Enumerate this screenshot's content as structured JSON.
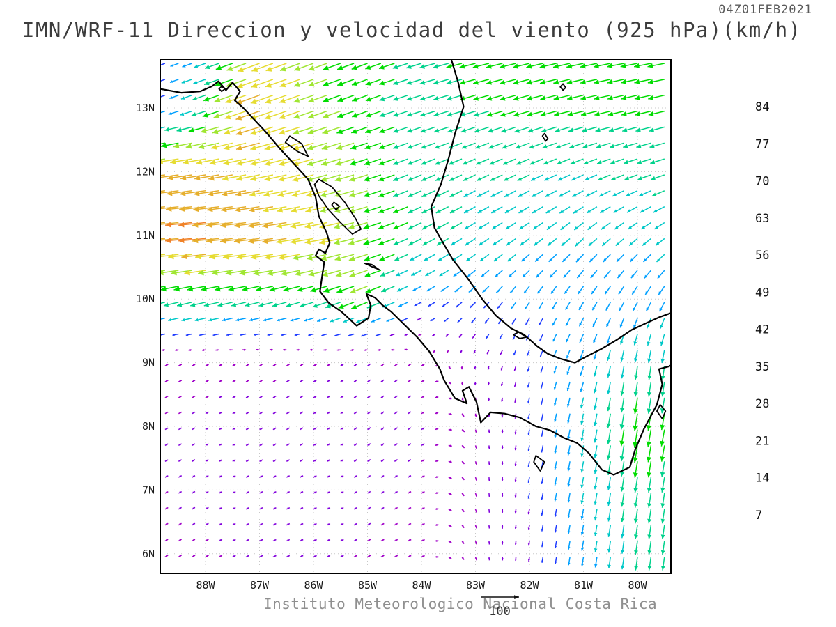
{
  "header": {
    "timestamp": "04Z01FEB2021",
    "title": "IMN/WRF-11 Direccion y velocidad del viento (925 hPa)(km/h)"
  },
  "footer": {
    "credit": "Instituto Meteorologico Nacional Costa Rica"
  },
  "chart_data": {
    "type": "vector_field",
    "model": "IMN/WRF-11",
    "variable": "Direccion y velocidad del viento",
    "level": "925 hPa",
    "units": "km/h",
    "valid_time": "04Z01FEB2021",
    "title": "IMN/WRF-11 Direccion y velocidad del viento (925 hPa)(km/h)",
    "x_axis": {
      "ticks": [
        {
          "label": "88W",
          "lon_w": 88
        },
        {
          "label": "87W",
          "lon_w": 87
        },
        {
          "label": "86W",
          "lon_w": 86
        },
        {
          "label": "85W",
          "lon_w": 85
        },
        {
          "label": "84W",
          "lon_w": 84
        },
        {
          "label": "83W",
          "lon_w": 83
        },
        {
          "label": "82W",
          "lon_w": 82
        },
        {
          "label": "81W",
          "lon_w": 81
        },
        {
          "label": "80W",
          "lon_w": 80
        }
      ],
      "lon_w_range": [
        88.84,
        79.38
      ]
    },
    "y_axis": {
      "ticks": [
        {
          "label": "13N",
          "lat": 13
        },
        {
          "label": "12N",
          "lat": 12
        },
        {
          "label": "11N",
          "lat": 11
        },
        {
          "label": "10N",
          "lat": 10
        },
        {
          "label": "9N",
          "lat": 9
        },
        {
          "label": "8N",
          "lat": 8
        },
        {
          "label": "7N",
          "lat": 7
        },
        {
          "label": "6N",
          "lat": 6
        }
      ],
      "lat_range": [
        5.69,
        13.77
      ]
    },
    "grid": {
      "step": 0.25,
      "lon_w_start": 88.75,
      "lon_w_end": 79.5,
      "lat_start": 13.7,
      "lat_end": 5.75
    },
    "colorbar": {
      "levels": [
        7,
        14,
        21,
        28,
        35,
        42,
        49,
        56,
        63,
        70,
        77,
        84
      ],
      "colors": [
        "#a000c8",
        "#8200dc",
        "#1e3cff",
        "#00a0ff",
        "#00c8c8",
        "#00d28c",
        "#00dc00",
        "#a0e632",
        "#e6dc32",
        "#e6af2d",
        "#f08228",
        "#fa3c3c",
        "#f00082"
      ],
      "orientation": "vertical-right"
    },
    "reference_vector": {
      "value": 100,
      "label": "100"
    },
    "wind_grid": {
      "comment": "u eastward km/h, v northward km/h; rows = lat descending, cols = lon_w descending",
      "lon_w": [
        89,
        88,
        87,
        86,
        85,
        84,
        83,
        82,
        81,
        80,
        79
      ],
      "lat": [
        14,
        13,
        12,
        11,
        10,
        9,
        8,
        7,
        6,
        5
      ],
      "u": [
        [
          -12,
          -28,
          -55,
          -50,
          -42,
          -40,
          -42,
          -44,
          -45,
          -45,
          -45
        ],
        [
          -14,
          -35,
          -62,
          -52,
          -40,
          -38,
          -40,
          -42,
          -42,
          -42,
          -42
        ],
        [
          -62,
          -65,
          -60,
          -55,
          -48,
          -36,
          -32,
          -32,
          -32,
          -34,
          -38
        ],
        [
          -70,
          -72,
          -68,
          -62,
          -50,
          -35,
          -28,
          -25,
          -22,
          -22,
          -25
        ],
        [
          -40,
          -42,
          -40,
          -38,
          -45,
          -20,
          -15,
          -12,
          -12,
          -12,
          -15
        ],
        [
          4,
          5,
          5,
          6,
          6,
          5,
          -2,
          -5,
          -8,
          -5,
          -5
        ],
        [
          6,
          7,
          8,
          8,
          8,
          6,
          2,
          -3,
          -5,
          -8,
          -8
        ],
        [
          6,
          7,
          8,
          8,
          7,
          6,
          2,
          -3,
          -5,
          -6,
          -6
        ],
        [
          5,
          6,
          7,
          7,
          6,
          5,
          2,
          -2,
          -4,
          -5,
          -5
        ],
        [
          5,
          6,
          7,
          7,
          6,
          5,
          2,
          -2,
          -4,
          -5,
          -5
        ]
      ],
      "v": [
        [
          -5,
          -10,
          -20,
          -18,
          -15,
          -12,
          -10,
          -10,
          -10,
          -8,
          -8
        ],
        [
          -5,
          -12,
          -22,
          -18,
          -15,
          -12,
          -12,
          -12,
          -10,
          -10,
          -10
        ],
        [
          -8,
          -10,
          -12,
          -15,
          -15,
          -15,
          -15,
          -15,
          -14,
          -12,
          -12
        ],
        [
          -6,
          -6,
          -8,
          -10,
          -14,
          -18,
          -18,
          -18,
          -20,
          -18,
          -18
        ],
        [
          -10,
          -10,
          -10,
          -12,
          -18,
          -10,
          -15,
          -18,
          -20,
          -22,
          -25
        ],
        [
          2,
          2,
          3,
          3,
          4,
          3,
          -8,
          -15,
          -25,
          -35,
          -38
        ],
        [
          3,
          4,
          4,
          5,
          5,
          4,
          -5,
          -15,
          -30,
          -48,
          -40
        ],
        [
          3,
          4,
          4,
          4,
          4,
          3,
          -6,
          -14,
          -28,
          -38,
          -38
        ],
        [
          3,
          3,
          3,
          3,
          3,
          2,
          -6,
          -12,
          -25,
          -35,
          -35
        ],
        [
          3,
          3,
          3,
          3,
          3,
          2,
          -6,
          -12,
          -25,
          -35,
          -35
        ]
      ]
    },
    "map": {
      "coastlines": [
        {
          "name": "pacific-coast",
          "closed": false,
          "points": [
            [
              88.84,
              13.3
            ],
            [
              88.45,
              13.24
            ],
            [
              88.1,
              13.26
            ],
            [
              87.88,
              13.34
            ],
            [
              87.76,
              13.42
            ],
            [
              87.62,
              13.28
            ],
            [
              87.5,
              13.4
            ],
            [
              87.36,
              13.26
            ],
            [
              87.46,
              13.12
            ],
            [
              87.3,
              13.0
            ],
            [
              87.1,
              12.82
            ],
            [
              86.88,
              12.62
            ],
            [
              86.62,
              12.36
            ],
            [
              86.36,
              12.12
            ],
            [
              86.1,
              11.88
            ],
            [
              85.96,
              11.6
            ],
            [
              85.9,
              11.3
            ],
            [
              85.76,
              11.05
            ],
            [
              85.7,
              10.88
            ],
            [
              85.78,
              10.72
            ],
            [
              85.9,
              10.78
            ],
            [
              85.96,
              10.68
            ],
            [
              85.8,
              10.58
            ],
            [
              85.84,
              10.36
            ],
            [
              85.88,
              10.12
            ],
            [
              85.72,
              9.94
            ],
            [
              85.48,
              9.8
            ],
            [
              85.2,
              9.58
            ],
            [
              84.98,
              9.7
            ],
            [
              84.94,
              9.9
            ],
            [
              85.02,
              10.08
            ],
            [
              84.86,
              10.02
            ],
            [
              84.72,
              9.9
            ],
            [
              84.56,
              9.8
            ],
            [
              84.32,
              9.6
            ],
            [
              84.08,
              9.4
            ],
            [
              83.86,
              9.18
            ],
            [
              83.66,
              8.9
            ],
            [
              83.58,
              8.72
            ],
            [
              83.38,
              8.44
            ],
            [
              83.16,
              8.36
            ],
            [
              83.24,
              8.56
            ],
            [
              83.12,
              8.62
            ],
            [
              82.98,
              8.38
            ],
            [
              82.9,
              8.06
            ],
            [
              82.72,
              8.22
            ],
            [
              82.46,
              8.2
            ],
            [
              82.18,
              8.14
            ],
            [
              81.88,
              8.0
            ],
            [
              81.62,
              7.94
            ],
            [
              81.36,
              7.82
            ],
            [
              81.12,
              7.74
            ],
            [
              80.9,
              7.58
            ],
            [
              80.66,
              7.32
            ],
            [
              80.44,
              7.24
            ],
            [
              80.14,
              7.36
            ],
            [
              80.04,
              7.64
            ],
            [
              79.88,
              7.96
            ],
            [
              79.64,
              8.34
            ],
            [
              79.54,
              8.66
            ],
            [
              79.6,
              8.9
            ],
            [
              79.42,
              8.94
            ],
            [
              79.38,
              8.96
            ]
          ]
        },
        {
          "name": "caribbean-coast",
          "closed": false,
          "points": [
            [
              83.45,
              13.77
            ],
            [
              83.32,
              13.4
            ],
            [
              83.22,
              13.02
            ],
            [
              83.38,
              12.6
            ],
            [
              83.5,
              12.2
            ],
            [
              83.64,
              11.8
            ],
            [
              83.82,
              11.45
            ],
            [
              83.76,
              11.12
            ],
            [
              83.64,
              10.94
            ],
            [
              83.42,
              10.62
            ],
            [
              83.14,
              10.32
            ],
            [
              82.86,
              9.98
            ],
            [
              82.62,
              9.74
            ],
            [
              82.34,
              9.54
            ],
            [
              82.1,
              9.44
            ],
            [
              81.86,
              9.26
            ],
            [
              81.66,
              9.14
            ],
            [
              81.42,
              9.06
            ],
            [
              81.16,
              9.0
            ],
            [
              80.94,
              9.1
            ],
            [
              80.66,
              9.22
            ],
            [
              80.38,
              9.36
            ],
            [
              80.1,
              9.52
            ],
            [
              79.84,
              9.62
            ],
            [
              79.58,
              9.72
            ],
            [
              79.38,
              9.78
            ]
          ]
        },
        {
          "name": "lake-nicaragua",
          "closed": true,
          "points": [
            [
              85.9,
              11.88
            ],
            [
              85.66,
              11.76
            ],
            [
              85.42,
              11.52
            ],
            [
              85.22,
              11.26
            ],
            [
              85.12,
              11.1
            ],
            [
              85.28,
              11.02
            ],
            [
              85.5,
              11.2
            ],
            [
              85.72,
              11.4
            ],
            [
              85.9,
              11.62
            ],
            [
              85.98,
              11.8
            ]
          ]
        },
        {
          "name": "ometepe-island",
          "closed": true,
          "points": [
            [
              85.62,
              11.52
            ],
            [
              85.52,
              11.46
            ],
            [
              85.58,
              11.4
            ],
            [
              85.66,
              11.48
            ]
          ]
        },
        {
          "name": "lake-managua",
          "closed": true,
          "points": [
            [
              86.52,
              12.46
            ],
            [
              86.3,
              12.32
            ],
            [
              86.1,
              12.24
            ],
            [
              86.22,
              12.44
            ],
            [
              86.44,
              12.56
            ]
          ]
        },
        {
          "name": "lake-arenal",
          "closed": true,
          "points": [
            [
              85.05,
              10.56
            ],
            [
              84.9,
              10.5
            ],
            [
              84.78,
              10.46
            ],
            [
              84.92,
              10.54
            ]
          ]
        },
        {
          "name": "fonseca-island",
          "closed": true,
          "points": [
            [
              87.7,
              13.34
            ],
            [
              87.64,
              13.3
            ],
            [
              87.7,
              13.26
            ],
            [
              87.75,
              13.3
            ]
          ]
        },
        {
          "name": "coiba-island",
          "closed": true,
          "points": [
            [
              81.88,
              7.54
            ],
            [
              81.72,
              7.44
            ],
            [
              81.8,
              7.3
            ],
            [
              81.92,
              7.44
            ]
          ]
        },
        {
          "name": "rey-island",
          "closed": true,
          "points": [
            [
              79.58,
              8.34
            ],
            [
              79.48,
              8.24
            ],
            [
              79.54,
              8.12
            ],
            [
              79.64,
              8.24
            ]
          ]
        },
        {
          "name": "bocas-islands",
          "closed": true,
          "points": [
            [
              82.3,
              9.44
            ],
            [
              82.18,
              9.38
            ],
            [
              82.06,
              9.4
            ],
            [
              82.2,
              9.48
            ]
          ]
        },
        {
          "name": "san-andres-island",
          "closed": true,
          "points": [
            [
              81.72,
              12.6
            ],
            [
              81.66,
              12.52
            ],
            [
              81.7,
              12.48
            ],
            [
              81.76,
              12.56
            ]
          ]
        },
        {
          "name": "providencia-island",
          "closed": true,
          "points": [
            [
              81.38,
              13.38
            ],
            [
              81.33,
              13.32
            ],
            [
              81.38,
              13.28
            ],
            [
              81.43,
              13.33
            ]
          ]
        }
      ]
    }
  }
}
